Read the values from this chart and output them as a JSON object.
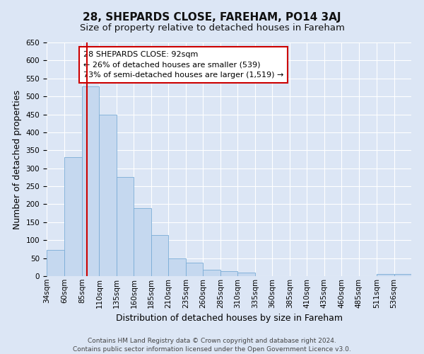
{
  "title": "28, SHEPARDS CLOSE, FAREHAM, PO14 3AJ",
  "subtitle": "Size of property relative to detached houses in Fareham",
  "xlabel": "Distribution of detached houses by size in Fareham",
  "ylabel": "Number of detached properties",
  "footer_line1": "Contains HM Land Registry data © Crown copyright and database right 2024.",
  "footer_line2": "Contains public sector information licensed under the Open Government Licence v3.0.",
  "annotation_line1": "28 SHEPARDS CLOSE: 92sqm",
  "annotation_line2": "← 26% of detached houses are smaller (539)",
  "annotation_line3": "73% of semi-detached houses are larger (1,519) →",
  "bar_left_edges": [
    34,
    60,
    85,
    110,
    135,
    160,
    185,
    210,
    235,
    260,
    285,
    310,
    335,
    360,
    385,
    410,
    435,
    460,
    485,
    511,
    536
  ],
  "bar_heights": [
    72,
    330,
    527,
    450,
    275,
    190,
    115,
    50,
    37,
    18,
    13,
    10,
    0,
    0,
    0,
    0,
    0,
    0,
    0,
    5,
    5
  ],
  "bar_color": "#c5d8ef",
  "bar_edge_color": "#7aacd6",
  "vline_x": 92,
  "vline_color": "#cc0000",
  "ylim": [
    0,
    650
  ],
  "yticks": [
    0,
    50,
    100,
    150,
    200,
    250,
    300,
    350,
    400,
    450,
    500,
    550,
    600,
    650
  ],
  "xtick_labels": [
    "34sqm",
    "60sqm",
    "85sqm",
    "110sqm",
    "135sqm",
    "160sqm",
    "185sqm",
    "210sqm",
    "235sqm",
    "260sqm",
    "285sqm",
    "310sqm",
    "335sqm",
    "360sqm",
    "385sqm",
    "410sqm",
    "435sqm",
    "460sqm",
    "485sqm",
    "511sqm",
    "536sqm"
  ],
  "bg_color": "#dce6f5",
  "plot_bg_color": "#dce6f5",
  "grid_color": "#ffffff",
  "annotation_box_edge_color": "#cc0000",
  "annotation_box_face_color": "#ffffff",
  "title_fontsize": 11,
  "subtitle_fontsize": 9.5,
  "axis_label_fontsize": 9,
  "tick_fontsize": 7.5,
  "annotation_fontsize": 8,
  "footer_fontsize": 6.5
}
